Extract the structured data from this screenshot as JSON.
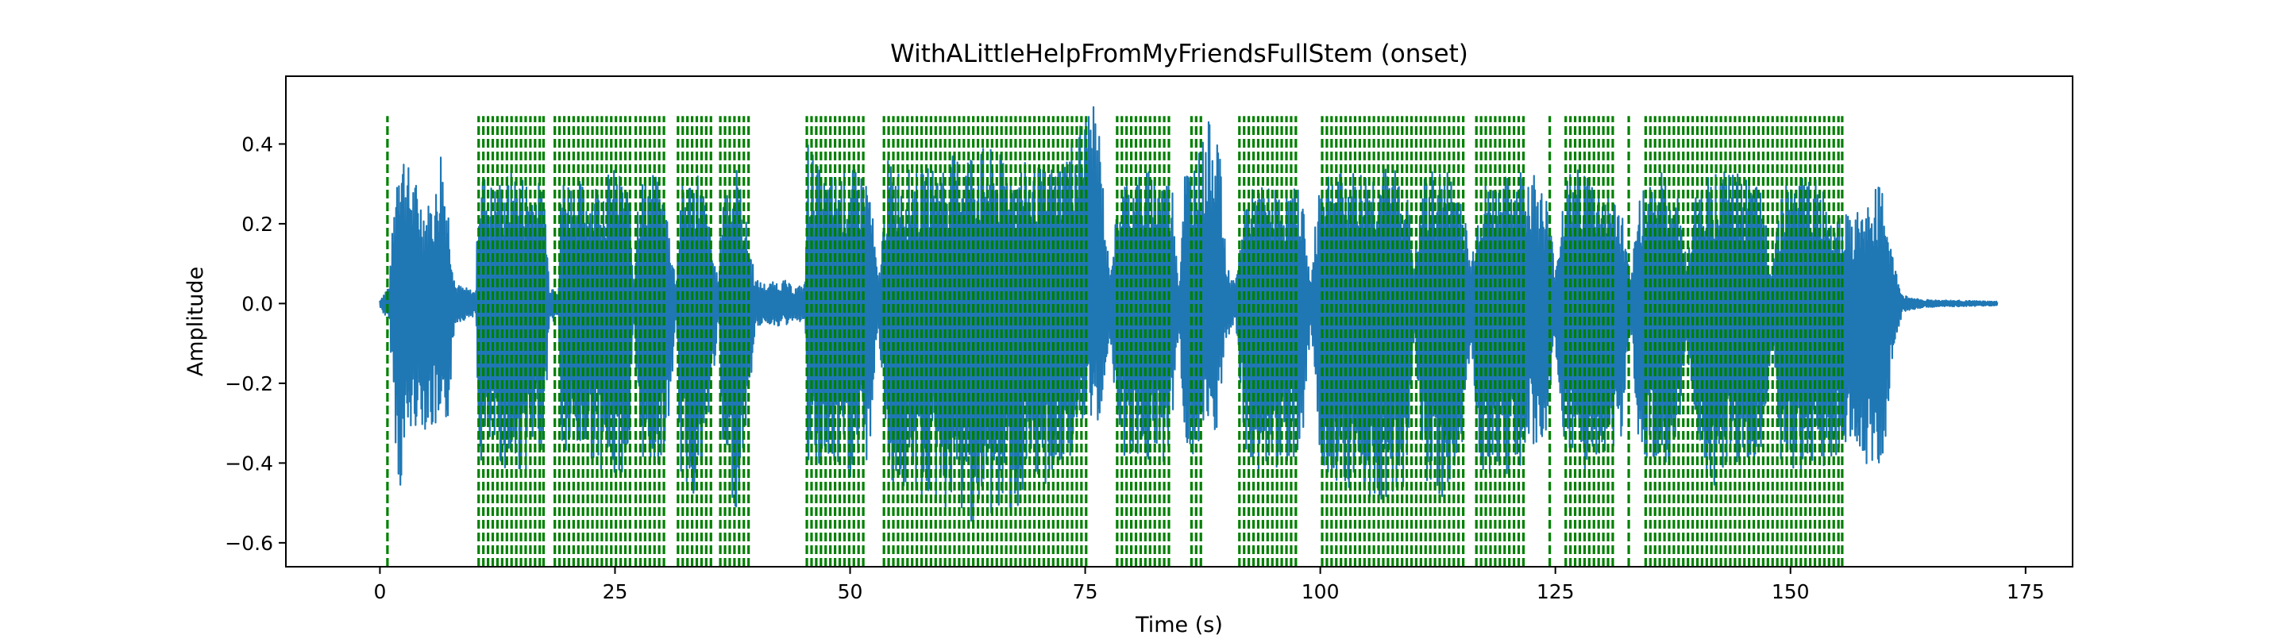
{
  "chart_data": {
    "type": "line",
    "title": "WithALittleHelpFromMyFriendsFullStem (onset)",
    "xlabel": "Time (s)",
    "ylabel": "Amplitude",
    "xlim": [
      -10,
      180
    ],
    "ylim": [
      -0.66,
      0.57
    ],
    "x_ticks": [
      0,
      25,
      50,
      75,
      100,
      125,
      150,
      175
    ],
    "x_tick_labels": [
      "0",
      "25",
      "50",
      "75",
      "100",
      "125",
      "150",
      "175"
    ],
    "y_ticks": [
      -0.6,
      -0.4,
      -0.2,
      0.0,
      0.2,
      0.4
    ],
    "y_tick_labels": [
      "−0.6",
      "−0.4",
      "−0.2",
      "0.0",
      "0.2",
      "0.4"
    ],
    "grid": false,
    "series": [
      {
        "color": "#1f77b4",
        "style": "waveform",
        "x_range": [
          0,
          172
        ],
        "envelope_upper": [
          [
            0,
            0.01
          ],
          [
            1,
            0.05
          ],
          [
            2,
            0.46
          ],
          [
            3,
            0.35
          ],
          [
            4,
            0.3
          ],
          [
            5,
            0.25
          ],
          [
            6,
            0.3
          ],
          [
            6.5,
            0.42
          ],
          [
            7.3,
            0.25
          ],
          [
            8,
            0.05
          ],
          [
            10.2,
            0.03
          ],
          [
            10.5,
            0.35
          ],
          [
            12,
            0.3
          ],
          [
            14,
            0.34
          ],
          [
            16,
            0.32
          ],
          [
            17.5,
            0.3
          ],
          [
            18,
            0.05
          ],
          [
            19,
            0.04
          ],
          [
            19.3,
            0.34
          ],
          [
            22,
            0.3
          ],
          [
            25,
            0.34
          ],
          [
            26.5,
            0.3
          ],
          [
            27,
            0.05
          ],
          [
            27.5,
            0.32
          ],
          [
            29,
            0.34
          ],
          [
            30.5,
            0.25
          ],
          [
            31.5,
            0.05
          ],
          [
            32,
            0.3
          ],
          [
            34,
            0.35
          ],
          [
            35,
            0.2
          ],
          [
            36,
            0.05
          ],
          [
            36.5,
            0.32
          ],
          [
            38,
            0.35
          ],
          [
            39,
            0.2
          ],
          [
            40,
            0.06
          ],
          [
            41,
            0.05
          ],
          [
            43,
            0.06
          ],
          [
            44,
            0.04
          ],
          [
            45.2,
            0.05
          ],
          [
            45.5,
            0.42
          ],
          [
            47,
            0.32
          ],
          [
            50,
            0.34
          ],
          [
            52,
            0.33
          ],
          [
            53,
            0.05
          ],
          [
            54,
            0.36
          ],
          [
            57,
            0.33
          ],
          [
            60,
            0.36
          ],
          [
            63,
            0.4
          ],
          [
            66,
            0.38
          ],
          [
            69,
            0.35
          ],
          [
            71,
            0.34
          ],
          [
            72.5,
            0.38
          ],
          [
            74,
            0.44
          ],
          [
            75.5,
            0.52
          ],
          [
            76.5,
            0.45
          ],
          [
            77.5,
            0.1
          ],
          [
            79,
            0.32
          ],
          [
            81,
            0.33
          ],
          [
            83,
            0.35
          ],
          [
            84.3,
            0.3
          ],
          [
            85,
            0.05
          ],
          [
            85.5,
            0.35
          ],
          [
            87,
            0.38
          ],
          [
            88,
            0.45
          ],
          [
            89,
            0.5
          ],
          [
            90,
            0.1
          ],
          [
            91,
            0.05
          ],
          [
            92,
            0.28
          ],
          [
            94,
            0.3
          ],
          [
            96,
            0.28
          ],
          [
            98,
            0.3
          ],
          [
            99,
            0.05
          ],
          [
            100,
            0.36
          ],
          [
            103,
            0.33
          ],
          [
            106,
            0.35
          ],
          [
            109,
            0.34
          ],
          [
            110,
            0.1
          ],
          [
            111,
            0.32
          ],
          [
            113,
            0.35
          ],
          [
            115,
            0.3
          ],
          [
            116,
            0.1
          ],
          [
            117,
            0.3
          ],
          [
            120,
            0.32
          ],
          [
            122,
            0.36
          ],
          [
            124,
            0.28
          ],
          [
            125,
            0.1
          ],
          [
            126,
            0.32
          ],
          [
            128,
            0.35
          ],
          [
            130,
            0.3
          ],
          [
            132,
            0.25
          ],
          [
            133,
            0.05
          ],
          [
            134,
            0.3
          ],
          [
            136,
            0.34
          ],
          [
            138,
            0.28
          ],
          [
            139,
            0.1
          ],
          [
            140,
            0.3
          ],
          [
            142,
            0.34
          ],
          [
            145,
            0.32
          ],
          [
            147,
            0.28
          ],
          [
            148,
            0.1
          ],
          [
            149,
            0.3
          ],
          [
            152,
            0.33
          ],
          [
            155,
            0.25
          ],
          [
            156,
            0.22
          ],
          [
            158,
            0.24
          ],
          [
            159,
            0.3
          ],
          [
            160,
            0.28
          ],
          [
            161,
            0.1
          ],
          [
            162,
            0.02
          ],
          [
            164,
            0.01
          ],
          [
            172,
            0.005
          ]
        ],
        "envelope_lower": [
          [
            0,
            -0.01
          ],
          [
            1,
            -0.05
          ],
          [
            2,
            -0.5
          ],
          [
            3,
            -0.35
          ],
          [
            4,
            -0.3
          ],
          [
            5,
            -0.32
          ],
          [
            6,
            -0.33
          ],
          [
            6.5,
            -0.42
          ],
          [
            7.3,
            -0.28
          ],
          [
            8,
            -0.05
          ],
          [
            10.2,
            -0.03
          ],
          [
            10.5,
            -0.42
          ],
          [
            12,
            -0.38
          ],
          [
            14,
            -0.44
          ],
          [
            16,
            -0.42
          ],
          [
            17.5,
            -0.35
          ],
          [
            18,
            -0.05
          ],
          [
            19,
            -0.04
          ],
          [
            19.3,
            -0.4
          ],
          [
            22,
            -0.38
          ],
          [
            25,
            -0.45
          ],
          [
            26.5,
            -0.4
          ],
          [
            27,
            -0.05
          ],
          [
            27.5,
            -0.38
          ],
          [
            29,
            -0.42
          ],
          [
            30.5,
            -0.38
          ],
          [
            31.5,
            -0.05
          ],
          [
            32,
            -0.45
          ],
          [
            34,
            -0.5
          ],
          [
            35,
            -0.3
          ],
          [
            36,
            -0.05
          ],
          [
            36.5,
            -0.45
          ],
          [
            38,
            -0.52
          ],
          [
            39,
            -0.3
          ],
          [
            40,
            -0.06
          ],
          [
            41,
            -0.05
          ],
          [
            43,
            -0.06
          ],
          [
            44,
            -0.04
          ],
          [
            45.2,
            -0.05
          ],
          [
            45.5,
            -0.44
          ],
          [
            47,
            -0.42
          ],
          [
            50,
            -0.45
          ],
          [
            52,
            -0.4
          ],
          [
            53,
            -0.05
          ],
          [
            54,
            -0.45
          ],
          [
            57,
            -0.5
          ],
          [
            60,
            -0.52
          ],
          [
            63,
            -0.55
          ],
          [
            66,
            -0.54
          ],
          [
            69,
            -0.52
          ],
          [
            71,
            -0.45
          ],
          [
            72.5,
            -0.44
          ],
          [
            74,
            -0.35
          ],
          [
            75.5,
            -0.3
          ],
          [
            76.5,
            -0.3
          ],
          [
            77.5,
            -0.1
          ],
          [
            79,
            -0.38
          ],
          [
            81,
            -0.4
          ],
          [
            83,
            -0.42
          ],
          [
            84.3,
            -0.33
          ],
          [
            85,
            -0.05
          ],
          [
            85.5,
            -0.38
          ],
          [
            87,
            -0.4
          ],
          [
            88,
            -0.34
          ],
          [
            89,
            -0.33
          ],
          [
            90,
            -0.1
          ],
          [
            91,
            -0.05
          ],
          [
            92,
            -0.4
          ],
          [
            94,
            -0.44
          ],
          [
            96,
            -0.4
          ],
          [
            98,
            -0.38
          ],
          [
            99,
            -0.05
          ],
          [
            100,
            -0.42
          ],
          [
            103,
            -0.46
          ],
          [
            106,
            -0.5
          ],
          [
            109,
            -0.47
          ],
          [
            110,
            -0.1
          ],
          [
            111,
            -0.44
          ],
          [
            113,
            -0.5
          ],
          [
            115,
            -0.4
          ],
          [
            116,
            -0.1
          ],
          [
            117,
            -0.42
          ],
          [
            120,
            -0.44
          ],
          [
            122,
            -0.4
          ],
          [
            124,
            -0.34
          ],
          [
            125,
            -0.1
          ],
          [
            126,
            -0.42
          ],
          [
            128,
            -0.46
          ],
          [
            130,
            -0.38
          ],
          [
            132,
            -0.35
          ],
          [
            133,
            -0.05
          ],
          [
            134,
            -0.4
          ],
          [
            136,
            -0.44
          ],
          [
            138,
            -0.38
          ],
          [
            139,
            -0.1
          ],
          [
            140,
            -0.42
          ],
          [
            142,
            -0.46
          ],
          [
            145,
            -0.44
          ],
          [
            147,
            -0.4
          ],
          [
            148,
            -0.1
          ],
          [
            149,
            -0.42
          ],
          [
            152,
            -0.44
          ],
          [
            155,
            -0.38
          ],
          [
            156,
            -0.38
          ],
          [
            158,
            -0.4
          ],
          [
            159,
            -0.42
          ],
          [
            160,
            -0.4
          ],
          [
            161,
            -0.1
          ],
          [
            162,
            -0.02
          ],
          [
            164,
            -0.01
          ],
          [
            172,
            -0.005
          ]
        ]
      }
    ],
    "onset_markers": {
      "color": "#008000",
      "linestyle": "dashed",
      "y_range": [
        -0.66,
        0.47
      ],
      "x": [
        0.8,
        10.5,
        11.0,
        11.5,
        12.0,
        12.5,
        13.0,
        13.5,
        14.0,
        14.5,
        15.0,
        15.5,
        16.0,
        16.5,
        17.0,
        17.4,
        18.6,
        19.1,
        19.6,
        20.1,
        20.6,
        21.1,
        21.6,
        22.1,
        22.6,
        23.1,
        23.6,
        24.1,
        24.6,
        25.1,
        25.6,
        26.1,
        26.6,
        27.2,
        27.7,
        28.2,
        28.7,
        29.2,
        29.7,
        30.2,
        31.7,
        32.2,
        32.7,
        33.2,
        33.7,
        34.2,
        34.7,
        35.2,
        36.2,
        36.7,
        37.2,
        37.7,
        38.2,
        38.7,
        39.2,
        45.4,
        45.9,
        46.4,
        46.9,
        47.4,
        47.9,
        48.4,
        48.9,
        49.4,
        49.9,
        50.4,
        50.9,
        51.4,
        53.6,
        54.1,
        54.6,
        55.1,
        55.6,
        56.1,
        56.6,
        57.1,
        57.6,
        58.1,
        58.6,
        59.1,
        59.6,
        60.1,
        60.6,
        61.1,
        61.6,
        62.1,
        62.6,
        63.1,
        63.6,
        64.1,
        64.6,
        65.1,
        65.6,
        66.1,
        66.6,
        67.1,
        67.6,
        68.1,
        68.6,
        69.1,
        69.6,
        70.1,
        70.6,
        71.1,
        71.6,
        72.1,
        72.6,
        73.1,
        73.6,
        74.1,
        74.6,
        75.1,
        78.4,
        78.9,
        79.4,
        79.9,
        80.4,
        80.9,
        81.4,
        81.9,
        82.4,
        82.9,
        83.4,
        83.9,
        86.3,
        86.8,
        87.3,
        91.4,
        91.9,
        92.4,
        92.9,
        93.4,
        93.9,
        94.4,
        94.9,
        95.4,
        95.9,
        96.4,
        96.9,
        97.4,
        100.2,
        100.7,
        101.2,
        101.7,
        102.2,
        102.7,
        103.2,
        103.7,
        104.2,
        104.7,
        105.2,
        105.7,
        106.2,
        106.7,
        107.2,
        107.7,
        108.2,
        108.7,
        109.2,
        109.7,
        110.2,
        110.7,
        111.2,
        111.7,
        112.2,
        112.7,
        113.2,
        113.7,
        114.2,
        114.7,
        115.2,
        116.6,
        117.1,
        117.6,
        118.1,
        118.6,
        119.1,
        119.6,
        120.1,
        120.6,
        121.1,
        121.6,
        124.4,
        126.1,
        126.6,
        127.1,
        127.6,
        128.1,
        128.6,
        129.1,
        129.6,
        130.1,
        130.6,
        131.1,
        132.8,
        134.6,
        135.1,
        135.6,
        136.1,
        136.6,
        137.1,
        137.6,
        138.1,
        138.6,
        139.1,
        139.6,
        140.1,
        140.6,
        141.1,
        141.6,
        142.1,
        142.6,
        143.1,
        143.6,
        144.1,
        144.6,
        145.1,
        145.6,
        146.1,
        146.6,
        147.1,
        147.6,
        148.1,
        148.6,
        149.1,
        149.6,
        150.1,
        150.6,
        151.1,
        151.6,
        152.1,
        152.6,
        153.1,
        153.6,
        154.1,
        154.6,
        155.1,
        155.5
      ]
    }
  }
}
